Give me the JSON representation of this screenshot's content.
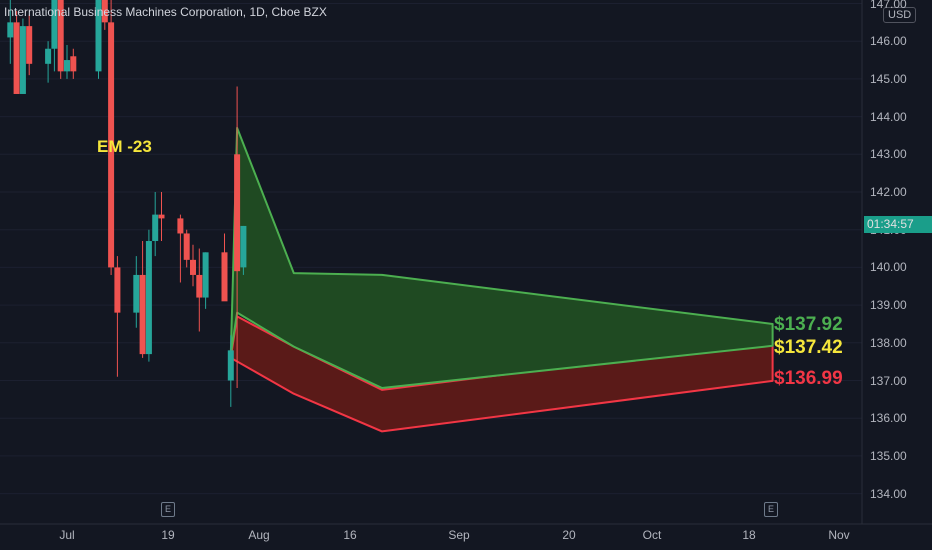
{
  "header": {
    "symbol_title": "International Business Machines Corporation, 1D, Cboe BZX",
    "currency": "USD",
    "countdown": "01:34:57"
  },
  "annotations": {
    "em_label": "EM -23",
    "price_labels": [
      {
        "text": "$137.92",
        "color": "#4caf50"
      },
      {
        "text": "$137.42",
        "color": "#f5e63c"
      },
      {
        "text": "$136.99",
        "color": "#f23645"
      }
    ],
    "earnings_marker": "E"
  },
  "colors": {
    "up": "#26a69a",
    "down": "#ef5350",
    "green_band_fill": "#1f4a22",
    "green_band_stroke": "#4caf50",
    "red_band_fill": "#5a1a18",
    "red_band_stroke": "#f23645"
  },
  "chart_data": {
    "type": "candlestick",
    "title": "International Business Machines Corporation, 1D, Cboe BZX",
    "y_axis": {
      "ticks": [
        "147.00",
        "146.00",
        "145.00",
        "144.00",
        "143.00",
        "142.00",
        "141.00",
        "140.00",
        "139.00",
        "138.00",
        "137.00",
        "136.00",
        "135.00",
        "134.00"
      ],
      "range": [
        133.5,
        147.3
      ],
      "unit": "USD"
    },
    "x_axis": {
      "ticks": [
        "Jul",
        "19",
        "Aug",
        "16",
        "Sep",
        "20",
        "Oct",
        "18",
        "Nov"
      ]
    },
    "candles": [
      {
        "date": "2021-06-22",
        "open": 146.1,
        "high": 147.1,
        "low": 145.4,
        "close": 146.5
      },
      {
        "date": "2021-06-23",
        "open": 146.5,
        "high": 146.8,
        "low": 144.6,
        "close": 144.6
      },
      {
        "date": "2021-06-24",
        "open": 144.6,
        "high": 146.6,
        "low": 144.6,
        "close": 146.4
      },
      {
        "date": "2021-06-25",
        "open": 146.4,
        "high": 146.7,
        "low": 145.1,
        "close": 145.4
      },
      {
        "date": "2021-06-28",
        "open": 145.4,
        "high": 146.0,
        "low": 144.9,
        "close": 145.8
      },
      {
        "date": "2021-06-29",
        "open": 145.8,
        "high": 147.4,
        "low": 145.2,
        "close": 147.3
      },
      {
        "date": "2021-06-30",
        "open": 147.3,
        "high": 147.7,
        "low": 145.0,
        "close": 145.2
      },
      {
        "date": "2021-07-01",
        "open": 145.2,
        "high": 145.9,
        "low": 145.0,
        "close": 145.5
      },
      {
        "date": "2021-07-02",
        "open": 145.6,
        "high": 145.8,
        "low": 145.0,
        "close": 145.2
      },
      {
        "date": "2021-07-06",
        "open": 145.2,
        "high": 147.7,
        "low": 145.0,
        "close": 147.4
      },
      {
        "date": "2021-07-07",
        "open": 147.4,
        "high": 147.9,
        "low": 146.3,
        "close": 146.5
      },
      {
        "date": "2021-07-08",
        "open": 146.5,
        "high": 147.2,
        "low": 139.8,
        "close": 140.0
      },
      {
        "date": "2021-07-09",
        "open": 140.0,
        "high": 140.3,
        "low": 137.1,
        "close": 138.8
      },
      {
        "date": "2021-07-12",
        "open": 138.8,
        "high": 140.3,
        "low": 138.4,
        "close": 139.8
      },
      {
        "date": "2021-07-13",
        "open": 139.8,
        "high": 140.7,
        "low": 137.6,
        "close": 137.7
      },
      {
        "date": "2021-07-14",
        "open": 137.7,
        "high": 141.0,
        "low": 137.5,
        "close": 140.7
      },
      {
        "date": "2021-07-15",
        "open": 140.7,
        "high": 142.0,
        "low": 140.3,
        "close": 141.4
      },
      {
        "date": "2021-07-16",
        "open": 141.4,
        "high": 142.0,
        "low": 140.7,
        "close": 141.3
      },
      {
        "date": "2021-07-19",
        "open": 141.3,
        "high": 141.4,
        "low": 139.6,
        "close": 140.9
      },
      {
        "date": "2021-07-20",
        "open": 140.9,
        "high": 141.0,
        "low": 140.0,
        "close": 140.2
      },
      {
        "date": "2021-07-21",
        "open": 140.2,
        "high": 140.6,
        "low": 139.5,
        "close": 139.8
      },
      {
        "date": "2021-07-22",
        "open": 139.8,
        "high": 140.5,
        "low": 138.3,
        "close": 139.2
      },
      {
        "date": "2021-07-23",
        "open": 139.2,
        "high": 140.4,
        "low": 138.9,
        "close": 140.4
      },
      {
        "date": "2021-07-26",
        "open": 140.4,
        "high": 140.9,
        "low": 139.2,
        "close": 139.1
      },
      {
        "date": "2021-07-27",
        "open": 137.0,
        "high": 138.2,
        "low": 136.3,
        "close": 137.8
      },
      {
        "date": "2021-07-28",
        "open": 143.0,
        "high": 144.8,
        "low": 136.8,
        "close": 139.9
      },
      {
        "date": "2021-07-29",
        "open": 140.0,
        "high": 141.1,
        "low": 139.8,
        "close": 141.1
      }
    ],
    "expected_move_bands": {
      "green_upper": [
        {
          "date": "2021-07-27",
          "value": 137.7
        },
        {
          "date": "2021-07-28",
          "value": 143.7
        },
        {
          "date": "2021-08-06",
          "value": 139.85
        },
        {
          "date": "2021-08-20",
          "value": 139.8
        },
        {
          "date": "2021-10-21",
          "value": 138.5
        }
      ],
      "green_lower": [
        {
          "date": "2021-07-28",
          "value": 138.8
        },
        {
          "date": "2021-08-06",
          "value": 137.9
        },
        {
          "date": "2021-08-20",
          "value": 136.8
        },
        {
          "date": "2021-10-21",
          "value": 137.92
        }
      ],
      "red_upper": [
        {
          "date": "2021-07-28",
          "value": 138.7
        },
        {
          "date": "2021-08-06",
          "value": 137.9
        },
        {
          "date": "2021-08-20",
          "value": 136.75
        },
        {
          "date": "2021-10-21",
          "value": 138.05
        }
      ],
      "red_lower": [
        {
          "date": "2021-07-27",
          "value": 137.6
        },
        {
          "date": "2021-08-06",
          "value": 136.65
        },
        {
          "date": "2021-08-20",
          "value": 135.65
        },
        {
          "date": "2021-10-21",
          "value": 136.99
        }
      ]
    },
    "price_levels": [
      137.92,
      137.42,
      136.99
    ]
  }
}
